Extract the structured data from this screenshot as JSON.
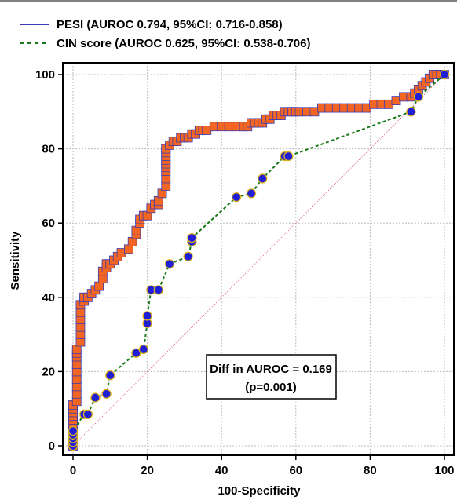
{
  "chart_data": {
    "type": "line",
    "xlabel": "100-Specificity",
    "ylabel": "Sensitivity",
    "xlim": [
      0,
      100
    ],
    "ylim": [
      0,
      100
    ],
    "xticks": [
      "0",
      "20",
      "40",
      "60",
      "80",
      "100"
    ],
    "yticks": [
      "0",
      "20",
      "40",
      "60",
      "80",
      "100"
    ],
    "grid": true,
    "legend_position": "top-left",
    "legend": [
      "PESI (AUROC 0.794, 95%CI: 0.716-0.858)",
      "CIN score (AUROC 0.625, 95%CI: 0.538-0.706)"
    ],
    "annotation": [
      "Diff in AUROC = 0.169",
      "(p=0.001)"
    ],
    "series": [
      {
        "name": "PESI (AUROC 0.794, 95%CI: 0.716-0.858)",
        "line_color": "#3b3bb3",
        "marker": "square",
        "marker_fill": "#f26522",
        "x": [
          0,
          0,
          0,
          0,
          0,
          0,
          0,
          0,
          0,
          0,
          0,
          1,
          1,
          1,
          1,
          1,
          1,
          1,
          1,
          1,
          2,
          2,
          2,
          2,
          2,
          2,
          3,
          3,
          3,
          4,
          5,
          6,
          7,
          8,
          8,
          9,
          9,
          10,
          11,
          12,
          13,
          15,
          16,
          17,
          17,
          18,
          18,
          19,
          19,
          20,
          21,
          22,
          23,
          23,
          24,
          25,
          25,
          25,
          25,
          25,
          25,
          25,
          25,
          25,
          25,
          26,
          27,
          28,
          29,
          30,
          31,
          32,
          33,
          34,
          35,
          36,
          38,
          40,
          42,
          44,
          46,
          47,
          48,
          49,
          50,
          51,
          52,
          53,
          54,
          55,
          56,
          57,
          58,
          59,
          60,
          61,
          63,
          65,
          67,
          69,
          71,
          73,
          75,
          77,
          79,
          81,
          83,
          85,
          87,
          89,
          91,
          92,
          93,
          94,
          95,
          96,
          97,
          98,
          99,
          100
        ],
        "y": [
          0,
          1,
          2,
          3,
          4,
          6,
          7,
          8,
          9,
          10,
          11,
          12,
          14,
          16,
          18,
          20,
          22,
          24,
          25,
          26,
          28,
          30,
          32,
          34,
          36,
          38,
          39,
          40,
          40,
          40,
          41,
          42,
          43,
          45,
          47,
          48,
          49,
          49,
          50,
          51,
          52,
          53,
          55,
          57,
          58,
          60,
          61,
          62,
          62,
          62,
          64,
          65,
          65,
          66,
          68,
          70,
          72,
          74,
          75,
          76,
          77,
          78,
          79,
          80,
          80,
          81,
          82,
          82,
          83,
          83,
          83,
          84,
          84,
          85,
          85,
          85,
          86,
          86,
          86,
          86,
          86,
          86,
          87,
          87,
          87,
          87,
          88,
          88,
          89,
          89,
          89,
          90,
          90,
          90,
          90,
          90,
          90,
          90,
          91,
          91,
          91,
          91,
          91,
          91,
          91,
          92,
          92,
          92,
          93,
          94,
          94,
          95,
          96,
          97,
          98,
          99,
          100,
          100,
          100,
          100
        ]
      },
      {
        "name": "CIN score (AUROC 0.625, 95%CI: 0.538-0.706)",
        "line_color": "#1a7a1a",
        "marker": "circle",
        "marker_fill": "#1f1fd6",
        "x": [
          0,
          0,
          0,
          0,
          0,
          3,
          4,
          6,
          9,
          10,
          17,
          19,
          20,
          20,
          21,
          23,
          26,
          31,
          32,
          32,
          44,
          48,
          51,
          57,
          58,
          91,
          93,
          100
        ],
        "y": [
          0,
          1,
          2,
          3,
          4,
          8.5,
          8.5,
          13,
          14,
          19,
          25,
          26,
          33,
          35,
          42,
          42,
          49,
          51,
          55,
          56,
          67,
          68,
          72,
          78,
          78,
          90,
          94,
          100
        ]
      },
      {
        "name": "",
        "line_color": "#e06080",
        "marker": "none",
        "x": [
          0,
          100
        ],
        "y": [
          0,
          100
        ]
      }
    ]
  }
}
